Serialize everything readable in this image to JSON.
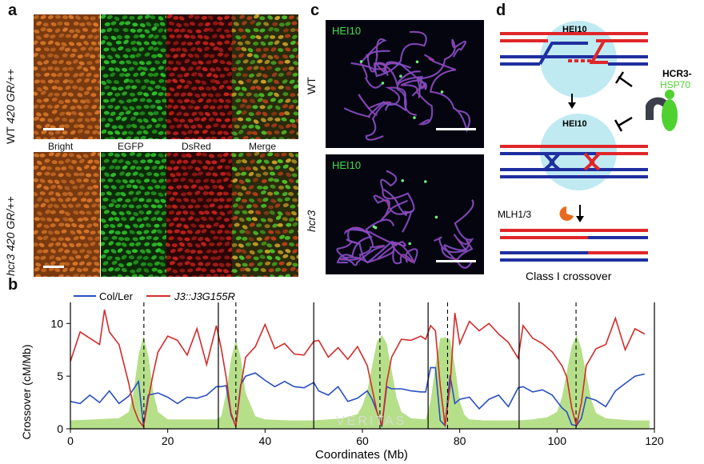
{
  "panels": {
    "a": {
      "letter": "a",
      "row_labels": [
        {
          "genotype": "WT",
          "line": "420 GR/++"
        },
        {
          "genotype": "hcr3",
          "line": "420 GR/++"
        }
      ],
      "columns": [
        "Bright",
        "EGFP",
        "DsRed",
        "Merge"
      ],
      "colors": {
        "bright": "#d9772a",
        "egfp": "#2fbf2a",
        "dsred": "#c2221c"
      }
    },
    "b": {
      "letter": "b"
    },
    "c": {
      "letter": "c",
      "stain_label_top": "HEI10",
      "stain_label_bottom": "HEI10",
      "row_top": "WT",
      "row_bottom": "hcr3"
    },
    "d": {
      "letter": "d",
      "hei10_top": "HEI10",
      "hei10_mid": "HEI10",
      "inhibitor_line1": "HCR3-",
      "inhibitor_line2": "HSP70",
      "mlh": "MLH1/3",
      "caption": "Class I crossover",
      "colors": {
        "red": "#e0262a",
        "blue": "#1f2fa0",
        "sphere": "#bfeaf2",
        "green": "#4fd130"
      }
    }
  },
  "watermark": "VERITAS",
  "chart_data": {
    "type": "line",
    "title": "",
    "xlabel": "Coordinates (Mb)",
    "ylabel": "Crossover (cM/Mb)",
    "xlim": [
      0,
      120
    ],
    "ylim": [
      0,
      12
    ],
    "xticks": [
      0,
      20,
      40,
      60,
      80,
      100,
      120
    ],
    "yticks": [
      0,
      5,
      10
    ],
    "chromosome_boundaries": [
      30.4,
      50.0,
      73.5,
      92.2
    ],
    "centromeres": [
      15.1,
      34.0,
      63.6,
      77.5,
      103.9
    ],
    "legend": [
      "Col/Ler",
      "J3::J3G155R"
    ],
    "series": [
      {
        "name": "Col/Ler",
        "color": "#2a4fc0",
        "x": [
          0,
          2,
          4,
          6,
          8,
          10,
          12,
          14,
          15,
          16,
          18,
          20,
          22,
          24,
          26,
          28,
          30,
          31,
          32,
          33,
          34,
          35,
          36,
          38,
          40,
          42,
          44,
          46,
          48,
          50,
          51,
          53,
          55,
          57,
          59,
          61,
          62,
          63,
          64,
          65,
          66,
          68,
          70,
          72,
          73,
          74,
          75,
          76,
          77,
          78,
          79,
          80,
          82,
          84,
          86,
          88,
          90,
          92,
          93,
          95,
          97,
          99,
          101,
          102,
          103,
          104,
          105,
          106,
          108,
          110,
          112,
          114,
          116,
          118
        ],
        "y": [
          2.6,
          2.4,
          3.2,
          2.5,
          3.6,
          2.4,
          3.1,
          4.5,
          0.3,
          3.2,
          3.4,
          3.0,
          2.4,
          3.0,
          2.9,
          3.2,
          4.0,
          4.0,
          4.1,
          1.3,
          0.3,
          4.2,
          5.0,
          5.3,
          4.6,
          4.0,
          4.5,
          4.0,
          3.9,
          4.4,
          3.6,
          3.2,
          4.0,
          2.6,
          2.9,
          3.6,
          2.8,
          1.6,
          0.2,
          4.0,
          3.8,
          3.8,
          3.6,
          3.5,
          3.5,
          5.8,
          5.8,
          0.8,
          0.3,
          5.1,
          2.4,
          2.8,
          3.0,
          1.9,
          2.8,
          3.2,
          2.1,
          3.9,
          4.0,
          3.5,
          3.7,
          3.2,
          2.0,
          1.6,
          0.4,
          0.3,
          1.0,
          3.0,
          2.7,
          2.1,
          3.6,
          4.3,
          5.0,
          5.2
        ]
      },
      {
        "name": "J3::J3G155R",
        "color": "#d42a2a",
        "x": [
          0,
          2,
          4,
          6,
          7,
          8,
          10,
          12,
          13,
          14,
          15,
          16,
          17,
          18,
          20,
          22,
          24,
          26,
          28,
          30,
          31,
          32,
          33,
          34,
          35,
          36,
          38,
          40,
          42,
          44,
          46,
          48,
          50,
          51,
          53,
          55,
          57,
          59,
          61,
          62,
          63,
          64,
          65,
          66,
          68,
          70,
          72,
          73,
          74,
          75,
          76,
          77,
          78,
          79,
          80,
          82,
          84,
          86,
          88,
          90,
          92,
          93,
          95,
          97,
          99,
          101,
          102,
          103,
          104,
          105,
          106,
          108,
          110,
          112,
          114,
          116,
          118
        ],
        "y": [
          6.4,
          9.2,
          8.6,
          8.0,
          11.3,
          9.2,
          8.0,
          4.3,
          2.0,
          0.8,
          0.2,
          2.8,
          5.2,
          7.3,
          8.8,
          8.4,
          7.0,
          9.5,
          6.1,
          9.8,
          7.6,
          4.9,
          1.5,
          0.2,
          4.0,
          6.8,
          7.8,
          9.9,
          7.6,
          8.1,
          7.1,
          7.0,
          8.3,
          8.4,
          6.8,
          7.7,
          6.6,
          7.8,
          6.0,
          3.8,
          1.6,
          0.3,
          4.4,
          6.8,
          8.5,
          8.4,
          8.8,
          8.5,
          9.8,
          9.3,
          4.1,
          0.3,
          4.0,
          11.0,
          8.1,
          10.2,
          9.3,
          10.0,
          9.0,
          8.2,
          6.7,
          9.8,
          8.6,
          8.1,
          7.3,
          6.0,
          4.9,
          2.0,
          0.3,
          2.5,
          6.0,
          7.6,
          8.0,
          10.5,
          7.5,
          9.5,
          9.0
        ]
      },
      {
        "name": "",
        "color": "#b6df8a",
        "area": true,
        "x": [
          0,
          5,
          10,
          12,
          13,
          14,
          15,
          16,
          17,
          18,
          20,
          25,
          30,
          31,
          32,
          33,
          34,
          35,
          36,
          38,
          40,
          45,
          50,
          53,
          56,
          59,
          60,
          61,
          62,
          63,
          64,
          65,
          66,
          67,
          68,
          70,
          73,
          74,
          75,
          76,
          77,
          78,
          79,
          80,
          81,
          82,
          85,
          90,
          92,
          95,
          98,
          100,
          101,
          102,
          103,
          104,
          105,
          106,
          107,
          108,
          110,
          115,
          119
        ],
        "y": [
          0.8,
          0.9,
          1.0,
          1.6,
          3.6,
          7.0,
          8.8,
          7.0,
          3.6,
          1.6,
          0.9,
          0.9,
          0.9,
          1.2,
          3.4,
          6.6,
          8.5,
          6.8,
          3.4,
          1.2,
          0.9,
          0.8,
          0.8,
          0.9,
          1.0,
          1.4,
          2.2,
          3.6,
          6.0,
          8.3,
          8.9,
          8.1,
          5.6,
          3.0,
          1.6,
          1.0,
          0.9,
          2.6,
          6.0,
          8.6,
          8.7,
          8.5,
          6.0,
          2.6,
          1.3,
          0.9,
          0.8,
          0.8,
          0.8,
          0.9,
          1.1,
          1.6,
          3.0,
          5.4,
          7.8,
          8.9,
          7.6,
          5.2,
          2.8,
          1.5,
          1.0,
          0.8,
          0.8
        ]
      }
    ]
  }
}
